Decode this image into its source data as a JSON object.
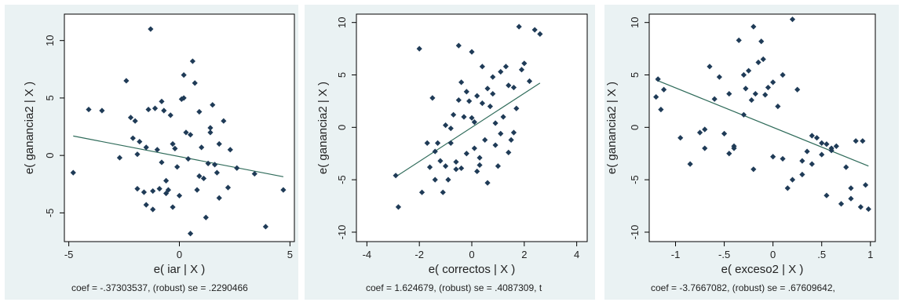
{
  "colors": {
    "panel_bg": "#eaf2f3",
    "plot_bg": "#ffffff",
    "marker": "#1f3b57",
    "fit_line": "#2f6b5a",
    "axis": "#000000"
  },
  "panels": [
    {
      "xlabel": "e( iar | X )",
      "ylabel": "e( ganancia2 | X )",
      "note": "coef = -.37303537, (robust) se = .2290466"
    },
    {
      "xlabel": "e( correctos | X )",
      "ylabel": "e( ganancia2 | X )",
      "note": "coef = 1.624679, (robust) se = .4087309, t"
    },
    {
      "xlabel": "e( exceso2 | X )",
      "ylabel": "e( ganancia2 | X )",
      "note": "coef = -3.7667082, (robust) se = .67609642,"
    }
  ],
  "chart_data": [
    {
      "type": "scatter",
      "xlabel": "e( iar | X )",
      "ylabel": "e( ganancia2 | X )",
      "xlim": [
        -5.2,
        5.2
      ],
      "ylim": [
        -7.5,
        12.3
      ],
      "xticks": [
        -5,
        0,
        5
      ],
      "yticks": [
        -5,
        0,
        5,
        10
      ],
      "fit": {
        "slope": -0.373,
        "intercept": -0.1
      },
      "x": [
        -4.8,
        -4.1,
        -3.5,
        -2.7,
        -2.4,
        -2.2,
        -2.1,
        -2.0,
        -1.9,
        -1.8,
        -1.6,
        -1.5,
        -1.4,
        -1.3,
        -1.2,
        -1.1,
        -1.0,
        -0.9,
        -0.8,
        -0.7,
        -0.6,
        -0.5,
        -0.4,
        -0.3,
        -0.2,
        -0.1,
        0.0,
        0.1,
        0.2,
        0.3,
        0.4,
        0.5,
        0.6,
        0.7,
        0.8,
        0.9,
        1.0,
        1.1,
        1.2,
        1.3,
        1.4,
        1.5,
        1.6,
        1.7,
        1.8,
        2.0,
        2.2,
        2.3,
        2.6,
        3.4,
        3.9,
        4.7,
        -1.5,
        -0.8,
        -0.3,
        0.2,
        0.9,
        1.4,
        -1.2,
        0.5,
        -0.6,
        1.8,
        -1.9
      ],
      "y": [
        -1.5,
        4.0,
        3.9,
        -0.2,
        6.5,
        3.3,
        1.5,
        3.0,
        -2.9,
        1.2,
        -3.2,
        0.7,
        4.0,
        11.0,
        -4.7,
        4.1,
        0.5,
        -2.9,
        4.7,
        3.9,
        -3.3,
        -3.0,
        3.5,
        -4.5,
        0.6,
        -1.0,
        -3.5,
        4.9,
        5.0,
        2.0,
        -0.3,
        -6.8,
        8.2,
        6.3,
        -3.0,
        3.8,
        0.7,
        -2.0,
        -5.4,
        -0.7,
        2.0,
        4.4,
        -0.8,
        -1.5,
        1.0,
        3.0,
        -2.8,
        0.5,
        -1.1,
        -1.6,
        -6.2,
        -3.0,
        -4.3,
        -0.6,
        1.0,
        7.0,
        -1.8,
        2.4,
        -3.1,
        1.8,
        -2.2,
        -3.7,
        0.1
      ]
    },
    {
      "type": "scatter",
      "xlabel": "e( correctos | X )",
      "ylabel": "e( ganancia2 | X )",
      "xlim": [
        -4.4,
        4.4
      ],
      "ylim": [
        -10.9,
        10.8
      ],
      "xticks": [
        -4,
        -2,
        0,
        2,
        4
      ],
      "yticks": [
        -10,
        -5,
        0,
        5,
        10
      ],
      "fit": {
        "slope": 1.625,
        "intercept": 0.0
      },
      "x": [
        -2.9,
        -2.8,
        -2.0,
        -1.9,
        -1.7,
        -1.6,
        -1.5,
        -1.4,
        -1.3,
        -1.2,
        -1.1,
        -1.0,
        -0.9,
        -0.8,
        -0.7,
        -0.6,
        -0.5,
        -0.4,
        -0.3,
        -0.2,
        -0.1,
        0.0,
        0.1,
        0.2,
        0.3,
        0.4,
        0.5,
        0.6,
        0.7,
        0.8,
        0.9,
        1.0,
        1.1,
        1.2,
        1.3,
        1.4,
        1.5,
        1.6,
        1.7,
        1.8,
        1.9,
        2.0,
        2.2,
        2.4,
        2.6,
        -1.0,
        -0.6,
        -0.2,
        0.1,
        0.4,
        0.8,
        1.1,
        -0.4,
        0.0,
        0.6,
        1.4,
        -1.4,
        -0.8,
        0.2,
        0.9,
        1.6,
        -0.5,
        0.3
      ],
      "y": [
        -4.6,
        -7.6,
        7.5,
        -6.2,
        -1.5,
        -3.8,
        2.8,
        -5.0,
        -1.5,
        -3.2,
        -6.2,
        -3.7,
        -5.0,
        -1.5,
        1.2,
        -4.0,
        7.8,
        4.3,
        1.0,
        -2.5,
        2.5,
        7.2,
        0.5,
        3.0,
        -3.6,
        5.8,
        -1.2,
        -5.3,
        2.0,
        3.2,
        -1.7,
        -3.7,
        5.3,
        1.0,
        5.8,
        4.0,
        -1.2,
        3.8,
        1.8,
        9.6,
        5.5,
        6.1,
        4.4,
        9.3,
        8.9,
        0.2,
        -3.3,
        3.4,
        -2.0,
        2.3,
        4.8,
        -0.6,
        -3.9,
        0.9,
        3.7,
        -2.4,
        -2.3,
        -0.1,
        -4.2,
        0.4,
        -0.5,
        2.6,
        -2.9
      ]
    },
    {
      "type": "scatter",
      "xlabel": "e( exceso2 | X )",
      "ylabel": "e( ganancia2 | X )",
      "xlim": [
        -1.27,
        1.05
      ],
      "ylim": [
        -10.9,
        10.8
      ],
      "xticks": [
        -1,
        -0.5,
        0,
        0.5,
        1
      ],
      "ytick_labels_shown": [
        -10,
        -5,
        0,
        5,
        10
      ],
      "yticks": [
        -10,
        -5,
        0,
        5,
        10
      ],
      "fit": {
        "slope": -3.767,
        "intercept": 0.0
      },
      "x": [
        -1.2,
        -1.18,
        -1.15,
        -1.12,
        -0.95,
        -0.85,
        -0.75,
        -0.7,
        -0.65,
        -0.6,
        -0.55,
        -0.5,
        -0.45,
        -0.4,
        -0.35,
        -0.3,
        -0.28,
        -0.25,
        -0.2,
        -0.18,
        -0.15,
        -0.12,
        -0.1,
        -0.08,
        -0.05,
        0.0,
        0.05,
        0.1,
        0.15,
        0.2,
        0.25,
        0.3,
        0.35,
        0.4,
        0.45,
        0.5,
        0.55,
        0.6,
        0.65,
        0.7,
        0.75,
        0.8,
        0.85,
        0.9,
        0.95,
        0.98,
        -0.4,
        -0.3,
        -0.2,
        0.0,
        0.2,
        0.3,
        0.5,
        -0.7,
        -0.45,
        0.1,
        0.4,
        0.6,
        0.8,
        0.92,
        -0.22,
        0.55
      ],
      "y": [
        2.9,
        4.6,
        1.7,
        3.6,
        -1.0,
        -3.5,
        -0.5,
        -2.0,
        5.8,
        2.7,
        4.8,
        -0.6,
        3.2,
        -2.0,
        8.3,
        5.0,
        3.7,
        5.4,
        9.6,
        3.2,
        6.2,
        8.2,
        6.5,
        3.1,
        3.8,
        4.3,
        2.0,
        -3.0,
        -5.8,
        10.3,
        3.6,
        -3.2,
        -2.3,
        -3.5,
        -1.0,
        -1.5,
        -6.5,
        -2.0,
        -1.8,
        -7.3,
        -3.8,
        -5.8,
        -1.3,
        -7.6,
        -5.5,
        -7.8,
        -1.8,
        1.2,
        -4.0,
        -2.8,
        -5.0,
        -4.5,
        -2.6,
        -0.2,
        -2.5,
        5.0,
        -0.8,
        -2.2,
        -6.8,
        -1.3,
        2.6,
        -1.6
      ]
    }
  ]
}
